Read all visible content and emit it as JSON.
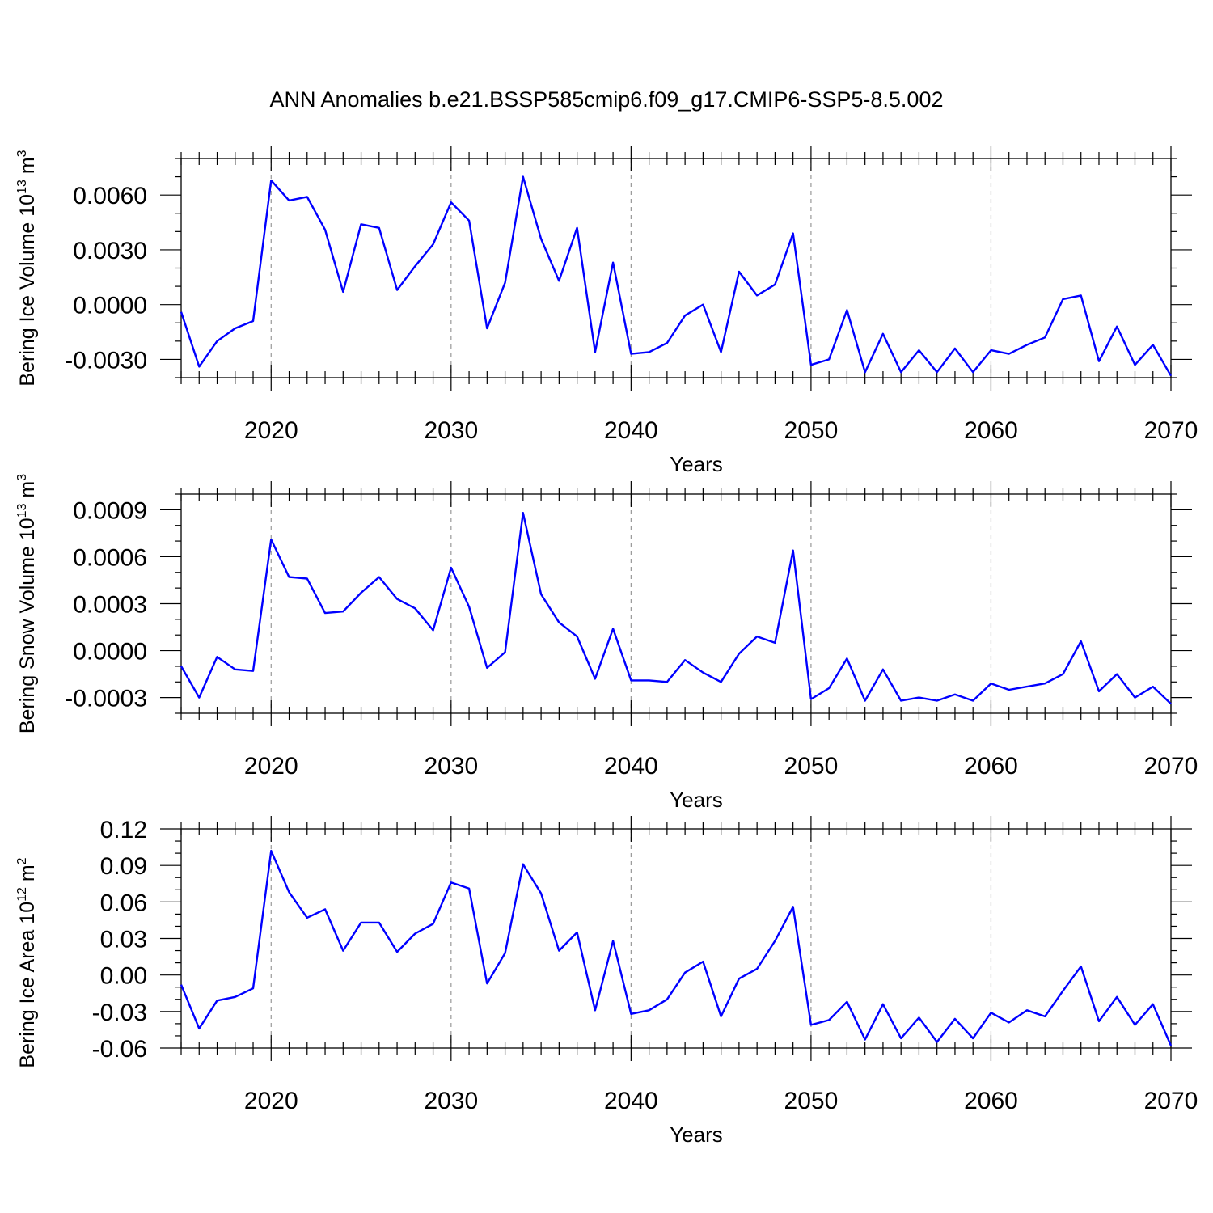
{
  "figure": {
    "title": "ANN Anomalies b.e21.BSSP585cmip6.f09_g17.CMIP6-SSP5-8.5.002"
  },
  "colors": {
    "line": "#0000ff",
    "axes": "#000000",
    "grid": "#999999"
  },
  "chart_data": [
    {
      "type": "line",
      "title": "ANN Anomalies b.e21.BSSP585cmip6.f09_g17.CMIP6-SSP5-8.5.002",
      "xlabel": "Years",
      "ylabel": "Bering Ice Volume 10",
      "ylabel_exp": "13",
      "ylabel_unit": " m",
      "ylabel_unit_exp": "3",
      "xlim": [
        2015,
        2070
      ],
      "ylim": [
        -0.004,
        0.008
      ],
      "xticks": [
        2020,
        2030,
        2040,
        2050,
        2060,
        2070
      ],
      "xtick_labels": [
        "2020",
        "2030",
        "2040",
        "2050",
        "2060",
        "2070"
      ],
      "yticks": [
        -0.003,
        0.0,
        0.003,
        0.006
      ],
      "ytick_labels": [
        "-0.0030",
        "0.0000",
        "0.0030",
        "0.0060"
      ],
      "grid_x": true,
      "series": [
        {
          "name": "Bering Ice Volume",
          "x": [
            2015,
            2016,
            2017,
            2018,
            2019,
            2020,
            2021,
            2022,
            2023,
            2024,
            2025,
            2026,
            2027,
            2028,
            2029,
            2030,
            2031,
            2032,
            2033,
            2034,
            2035,
            2036,
            2037,
            2038,
            2039,
            2040,
            2041,
            2042,
            2043,
            2044,
            2045,
            2046,
            2047,
            2048,
            2049,
            2050,
            2051,
            2052,
            2053,
            2054,
            2055,
            2056,
            2057,
            2058,
            2059,
            2060,
            2061,
            2062,
            2063,
            2064,
            2065,
            2066,
            2067,
            2068,
            2069,
            2070
          ],
          "values": [
            -0.0004,
            -0.0034,
            -0.002,
            -0.0013,
            -0.0009,
            0.0068,
            0.0057,
            0.0059,
            0.0041,
            0.0007,
            0.0044,
            0.0042,
            0.0008,
            0.0021,
            0.0033,
            0.0056,
            0.0046,
            -0.0013,
            0.0012,
            0.007,
            0.0036,
            0.0013,
            0.0042,
            -0.0026,
            0.0023,
            -0.0027,
            -0.0026,
            -0.0021,
            -0.0006,
            0.0,
            -0.0026,
            0.0018,
            0.0005,
            0.0011,
            0.0039,
            -0.0033,
            -0.003,
            -0.0003,
            -0.0037,
            -0.0016,
            -0.0037,
            -0.0025,
            -0.0037,
            -0.0024,
            -0.0037,
            -0.0025,
            -0.0027,
            -0.0022,
            -0.0018,
            0.0003,
            0.0005,
            -0.0031,
            -0.0012,
            -0.0033,
            -0.0022,
            -0.0039
          ]
        }
      ]
    },
    {
      "type": "line",
      "xlabel": "Years",
      "ylabel": "Bering Snow Volume 10",
      "ylabel_exp": "13",
      "ylabel_unit": " m",
      "ylabel_unit_exp": "3",
      "xlim": [
        2015,
        2070
      ],
      "ylim": [
        -0.0004,
        0.001
      ],
      "xticks": [
        2020,
        2030,
        2040,
        2050,
        2060,
        2070
      ],
      "xtick_labels": [
        "2020",
        "2030",
        "2040",
        "2050",
        "2060",
        "2070"
      ],
      "yticks": [
        -0.0003,
        0.0,
        0.0003,
        0.0006,
        0.0009
      ],
      "ytick_labels": [
        "-0.0003",
        "0.0000",
        "0.0003",
        "0.0006",
        "0.0009"
      ],
      "grid_x": true,
      "series": [
        {
          "name": "Bering Snow Volume",
          "x": [
            2015,
            2016,
            2017,
            2018,
            2019,
            2020,
            2021,
            2022,
            2023,
            2024,
            2025,
            2026,
            2027,
            2028,
            2029,
            2030,
            2031,
            2032,
            2033,
            2034,
            2035,
            2036,
            2037,
            2038,
            2039,
            2040,
            2041,
            2042,
            2043,
            2044,
            2045,
            2046,
            2047,
            2048,
            2049,
            2050,
            2051,
            2052,
            2053,
            2054,
            2055,
            2056,
            2057,
            2058,
            2059,
            2060,
            2061,
            2062,
            2063,
            2064,
            2065,
            2066,
            2067,
            2068,
            2069,
            2070
          ],
          "values": [
            -0.0001,
            -0.0003,
            -4e-05,
            -0.00012,
            -0.00013,
            0.00071,
            0.00047,
            0.00046,
            0.00024,
            0.00025,
            0.00037,
            0.00047,
            0.00033,
            0.00027,
            0.00013,
            0.00053,
            0.00028,
            -0.00011,
            -1e-05,
            0.00088,
            0.00036,
            0.00018,
            9e-05,
            -0.00018,
            0.00014,
            -0.00019,
            -0.00019,
            -0.0002,
            -6e-05,
            -0.00014,
            -0.0002,
            -2e-05,
            9e-05,
            5e-05,
            0.00064,
            -0.00031,
            -0.00024,
            -5e-05,
            -0.00032,
            -0.00012,
            -0.00032,
            -0.0003,
            -0.00032,
            -0.00028,
            -0.00032,
            -0.00021,
            -0.00025,
            -0.00023,
            -0.00021,
            -0.00015,
            6e-05,
            -0.00026,
            -0.00015,
            -0.0003,
            -0.00023,
            -0.00034
          ]
        }
      ]
    },
    {
      "type": "line",
      "xlabel": "Years",
      "ylabel": "Bering Ice Area 10",
      "ylabel_exp": "12",
      "ylabel_unit": " m",
      "ylabel_unit_exp": "2",
      "xlim": [
        2015,
        2070
      ],
      "ylim": [
        -0.06,
        0.12
      ],
      "xticks": [
        2020,
        2030,
        2040,
        2050,
        2060,
        2070
      ],
      "xtick_labels": [
        "2020",
        "2030",
        "2040",
        "2050",
        "2060",
        "2070"
      ],
      "yticks": [
        -0.06,
        -0.03,
        0.0,
        0.03,
        0.06,
        0.09,
        0.12
      ],
      "ytick_labels": [
        "-0.06",
        "-0.03",
        "0.00",
        "0.03",
        "0.06",
        "0.09",
        "0.12"
      ],
      "grid_x": true,
      "series": [
        {
          "name": "Bering Ice Area",
          "x": [
            2015,
            2016,
            2017,
            2018,
            2019,
            2020,
            2021,
            2022,
            2023,
            2024,
            2025,
            2026,
            2027,
            2028,
            2029,
            2030,
            2031,
            2032,
            2033,
            2034,
            2035,
            2036,
            2037,
            2038,
            2039,
            2040,
            2041,
            2042,
            2043,
            2044,
            2045,
            2046,
            2047,
            2048,
            2049,
            2050,
            2051,
            2052,
            2053,
            2054,
            2055,
            2056,
            2057,
            2058,
            2059,
            2060,
            2061,
            2062,
            2063,
            2064,
            2065,
            2066,
            2067,
            2068,
            2069,
            2070
          ],
          "values": [
            -0.008,
            -0.044,
            -0.021,
            -0.018,
            -0.011,
            0.102,
            0.068,
            0.047,
            0.054,
            0.02,
            0.043,
            0.043,
            0.019,
            0.034,
            0.042,
            0.076,
            0.071,
            -0.007,
            0.018,
            0.091,
            0.067,
            0.02,
            0.035,
            -0.029,
            0.028,
            -0.032,
            -0.029,
            -0.02,
            0.002,
            0.011,
            -0.034,
            -0.003,
            0.005,
            0.028,
            0.056,
            -0.041,
            -0.037,
            -0.022,
            -0.053,
            -0.024,
            -0.052,
            -0.035,
            -0.055,
            -0.036,
            -0.052,
            -0.031,
            -0.039,
            -0.029,
            -0.034,
            -0.013,
            0.007,
            -0.038,
            -0.018,
            -0.041,
            -0.024,
            -0.058
          ]
        }
      ]
    }
  ]
}
